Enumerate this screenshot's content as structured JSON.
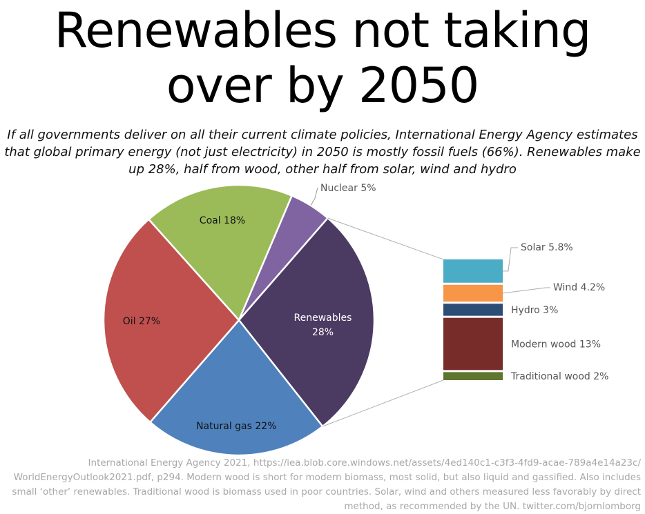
{
  "title_line1": "Renewables not taking",
  "title_line2": "over by 2050",
  "subtitle": "If all governments deliver on all their current climate policies, International Energy Agency estimates that global primary energy (not just electricity) in 2050 is mostly fossil fuels (66%). Renewables make up 28%, half from wood, other half from solar, wind and hydro",
  "source": "International Energy Agency 2021, https://iea.blob.core.windows.net/assets/4ed140c1-c3f3-4fd9-acae-789a4e14a23c/ WorldEnergyOutlook2021.pdf, p294. Modern wood is short for modern biomass, most solid, but also liquid and gassified. Also includes small ‘other’ renewables. Traditional wood is biomass used in poor countries. Solar, wind and others measured less favorably by direct method, as recommended by the UN. twitter.com/bjornlomborg",
  "chart_data": {
    "type": "pie",
    "title": "Renewables not taking over by 2050",
    "slices": [
      {
        "name": "Nuclear",
        "value": 5,
        "label": "Nuclear 5%",
        "color": "#8064a2"
      },
      {
        "name": "Renewables",
        "value": 28,
        "label": "Renewables 28%",
        "color": "#4b3a62"
      },
      {
        "name": "Natural gas",
        "value": 22,
        "label": "Natural gas 22%",
        "color": "#4f81bd"
      },
      {
        "name": "Oil",
        "value": 27,
        "label": "Oil 27%",
        "color": "#c0504d"
      },
      {
        "name": "Coal",
        "value": 18,
        "label": "Coal 18%",
        "color": "#9bbb59"
      }
    ],
    "breakdown": {
      "of": "Renewables",
      "type": "stacked-bar",
      "items": [
        {
          "name": "Solar",
          "value": 5.8,
          "label": "Solar 5.8%",
          "color": "#4bacc6"
        },
        {
          "name": "Wind",
          "value": 4.2,
          "label": "Wind 4.2%",
          "color": "#f79646"
        },
        {
          "name": "Hydro",
          "value": 3,
          "label": "Hydro 3%",
          "color": "#2c4d75"
        },
        {
          "name": "Modern wood",
          "value": 13,
          "label": "Modern wood 13%",
          "color": "#772c2a"
        },
        {
          "name": "Traditional wood",
          "value": 2,
          "label": "Traditional wood 2%",
          "color": "#5f7530"
        }
      ]
    }
  }
}
